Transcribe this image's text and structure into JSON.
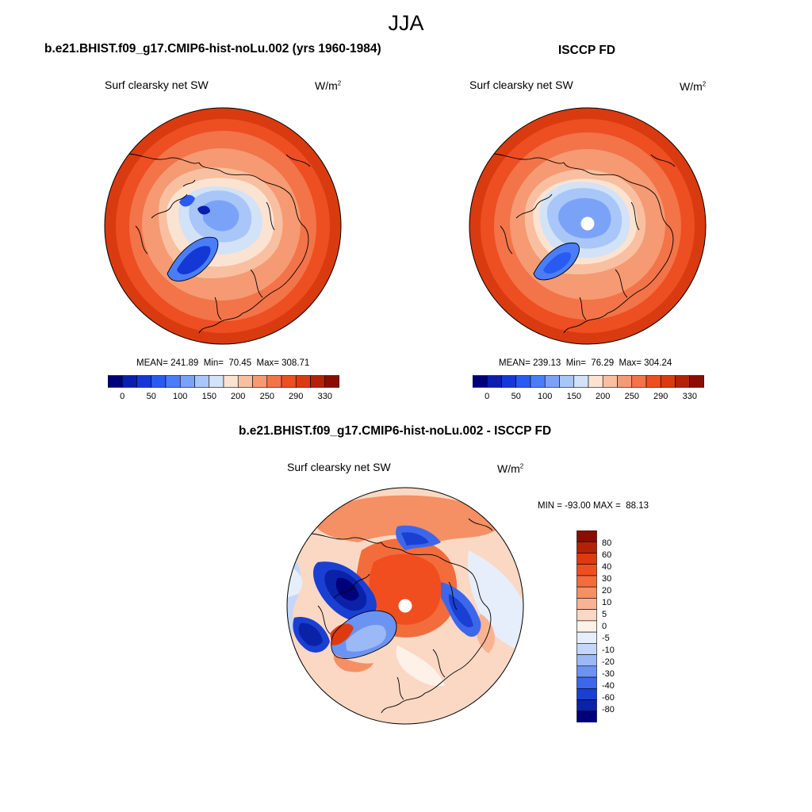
{
  "title": "JJA",
  "panels": [
    {
      "id": "model",
      "title": "b.e21.BHIST.f09_g17.CMIP6-hist-noLu.002 (yrs 1960-1984)",
      "variable": "Surf clearsky net SW",
      "units_base": "W/m",
      "units_exp": "2",
      "stats": "MEAN= 241.89  Min=  70.45  Max= 308.71",
      "mean": 241.89,
      "min": 70.45,
      "max": 308.71
    },
    {
      "id": "obs",
      "title": "ISCCP FD",
      "variable": "Surf clearsky net SW",
      "units_base": "W/m",
      "units_exp": "2",
      "stats": "MEAN= 239.13  Min=  76.29  Max= 304.24",
      "mean": 239.13,
      "min": 76.29,
      "max": 304.24
    },
    {
      "id": "diff",
      "title": "b.e21.BHIST.f09_g17.CMIP6-hist-noLu.002 - ISCCP FD",
      "variable": "Surf clearsky net SW",
      "units_base": "W/m",
      "units_exp": "2",
      "stats": "MIN = -93.00 MAX =  88.13",
      "min": -93.0,
      "max": 88.13
    }
  ],
  "colorbar_abs": {
    "tick_labels": [
      "0",
      "50",
      "100",
      "150",
      "200",
      "250",
      "290",
      "330"
    ],
    "colors": [
      "#00007a",
      "#0a1fb0",
      "#1438d6",
      "#2a5bf0",
      "#4a7ef8",
      "#7aa3f8",
      "#a8c6f8",
      "#d2e2f7",
      "#fbe3d2",
      "#f8c0a0",
      "#f59a72",
      "#f27448",
      "#ed4e22",
      "#d93a10",
      "#b32208",
      "#8a0d02"
    ]
  },
  "colorbar_diff": {
    "tick_labels": [
      "80",
      "60",
      "40",
      "30",
      "20",
      "10",
      "5",
      "0",
      "-5",
      "-10",
      "-20",
      "-30",
      "-40",
      "-60",
      "-80"
    ],
    "colors": [
      "#8a0d02",
      "#b32208",
      "#dd3a10",
      "#f04e1e",
      "#f36c3c",
      "#f58f64",
      "#f8b393",
      "#fbd8c4",
      "#fdf1e8",
      "#e6eefb",
      "#c5d7f8",
      "#9bb9f6",
      "#6b93f2",
      "#3d67ea",
      "#1a3fd3",
      "#0a22a8",
      "#00007a"
    ]
  }
}
